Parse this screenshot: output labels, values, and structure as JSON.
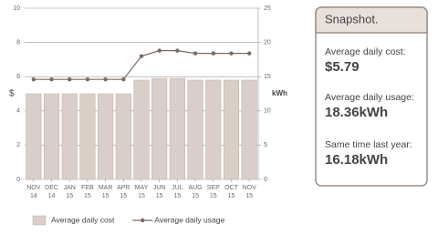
{
  "chart_data": {
    "type": "bar",
    "categories": [
      "NOV",
      "DEC",
      "JAN",
      "FEB",
      "MAR",
      "APR",
      "MAY",
      "JUN",
      "JUL",
      "AUG",
      "SEP",
      "OCT",
      "NOV"
    ],
    "category_years": [
      "14",
      "14",
      "15",
      "15",
      "15",
      "15",
      "15",
      "15",
      "15",
      "15",
      "15",
      "15",
      "15"
    ],
    "y_label": "$",
    "y2_label": "kWh",
    "ylim": [
      0,
      10
    ],
    "yticks": [
      0,
      2,
      4,
      6,
      8,
      10
    ],
    "y2lim": [
      0,
      25
    ],
    "y2ticks": [
      0,
      5,
      10,
      15,
      20,
      25
    ],
    "grid": true,
    "legend": "bottom",
    "series": [
      {
        "name": "Average daily cost",
        "type": "bar",
        "color": "#d9cfc8",
        "values": [
          5.0,
          5.0,
          5.0,
          5.0,
          5.0,
          5.0,
          5.8,
          5.9,
          5.9,
          5.8,
          5.8,
          5.8,
          5.8
        ]
      },
      {
        "name": "Average daily usage",
        "type": "line",
        "axis": "y2",
        "color": "#7a6a62",
        "values": [
          14.6,
          14.6,
          14.6,
          14.6,
          14.6,
          14.6,
          18.0,
          18.8,
          18.8,
          18.4,
          18.4,
          18.4,
          18.4
        ]
      }
    ]
  },
  "snapshot": {
    "title": "Snapshot.",
    "items": [
      {
        "label": "Average daily cost:",
        "value": "$5.79"
      },
      {
        "label": "Average daily usage:",
        "value": "18.36kWh"
      },
      {
        "label": "Same time last year:",
        "value": "16.18kWh"
      }
    ]
  }
}
